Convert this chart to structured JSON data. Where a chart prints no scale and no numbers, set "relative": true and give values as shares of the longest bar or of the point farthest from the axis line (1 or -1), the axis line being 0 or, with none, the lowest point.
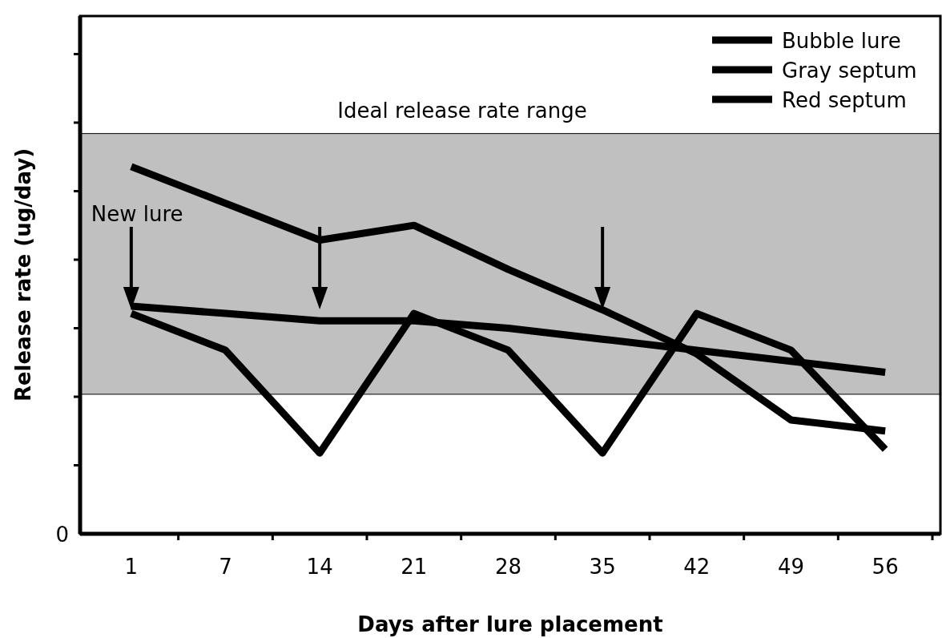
{
  "chart_data": {
    "type": "line",
    "relative": true,
    "xlabel": "Days after lure placement",
    "ylabel": "Release rate (ug/day)",
    "categories": [
      "1",
      "7",
      "14",
      "21",
      "28",
      "35",
      "42",
      "49",
      "56"
    ],
    "series": [
      {
        "name": "Bubble lure",
        "color": "#000000",
        "values": [
          1,
          0.9,
          0.8,
          0.84,
          0.72,
          0.61,
          0.49,
          0.31,
          0.28
        ]
      },
      {
        "name": "Gray septum",
        "color": "#000000",
        "values": [
          0.6,
          0.5,
          0.22,
          0.6,
          0.5,
          0.22,
          0.6,
          0.5,
          0.23
        ]
      },
      {
        "name": "Red septum",
        "color": "#000000",
        "values": [
          0.62,
          0.6,
          0.58,
          0.58,
          0.56,
          0.53,
          0.5,
          0.47,
          0.44
        ]
      }
    ],
    "bands": [
      {
        "axis": "y",
        "from": 0.38,
        "to": 1.09,
        "label": "Ideal release rate range",
        "color": "#c0c0c0"
      }
    ],
    "annotations": [
      "0",
      "New lure"
    ],
    "legend": "top right",
    "line_style": "solid"
  }
}
